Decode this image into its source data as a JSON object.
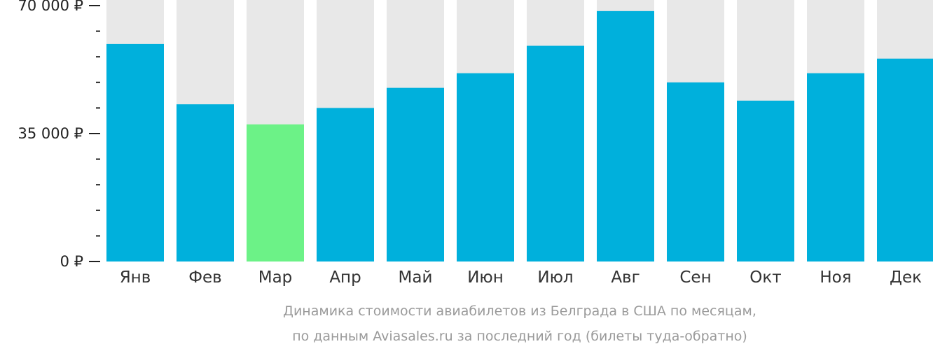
{
  "chart_data": {
    "type": "bar",
    "categories": [
      "Янв",
      "Фев",
      "Мар",
      "Апр",
      "Май",
      "Июн",
      "Июл",
      "Авг",
      "Сен",
      "Окт",
      "Ноя",
      "Дек"
    ],
    "values": [
      59500,
      43000,
      37500,
      42000,
      47500,
      51500,
      59000,
      68500,
      49000,
      44000,
      51500,
      55500
    ],
    "highlight_index": 2,
    "ylim": [
      0,
      72000
    ],
    "yticks": [
      0,
      35000,
      70000
    ],
    "ytick_labels": [
      "0 ₽",
      "35 000 ₽",
      "70 000 ₽"
    ],
    "minor_ticks_per_major": 5,
    "title": "",
    "xlabel": "",
    "ylabel": "",
    "caption_lines": [
      "Динамика стоимости авиабилетов из Белграда в США по месяцам,",
      "по данным Aviasales.ru за последний год (билеты туда-обратно)"
    ],
    "colors": {
      "bar": "#00b0dc",
      "highlight": "#6cf287",
      "background_bar": "#e8e8e8",
      "caption": "#9a9a9a",
      "axis": "#222222"
    }
  }
}
